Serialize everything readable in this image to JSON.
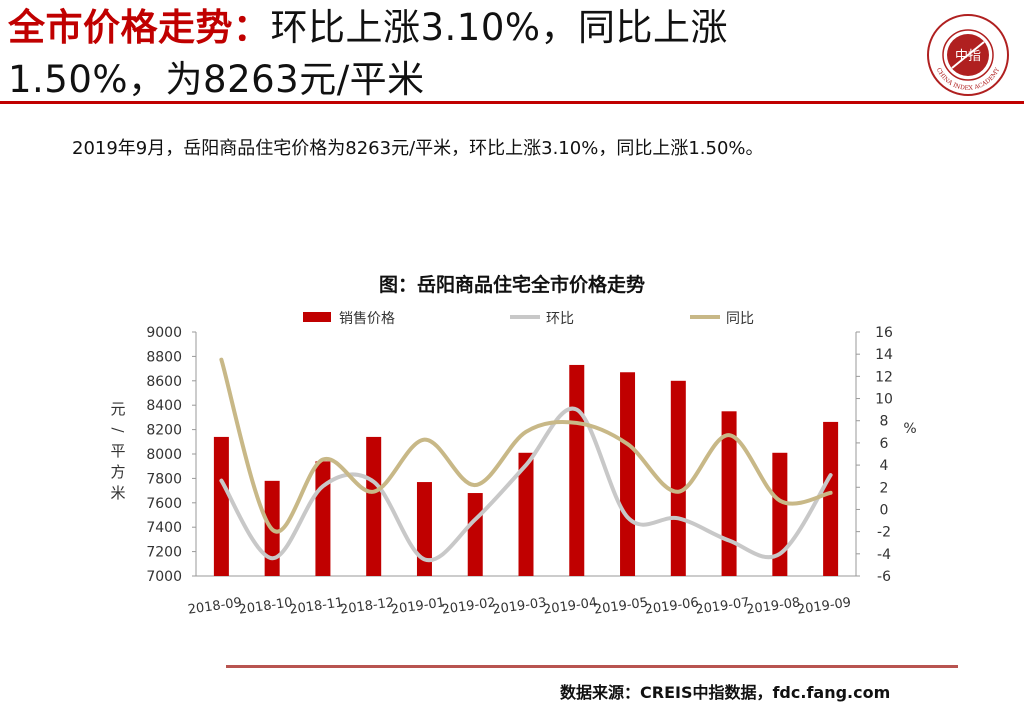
{
  "header": {
    "title_highlight": "全市价格走势：",
    "title_rest": "环比上涨3.10%，同比上涨1.50%，为8263元/平米"
  },
  "logo": {
    "center_text": "中指",
    "arc_text": "CHINA INDEX ACADEMY"
  },
  "summary": "2019年9月，岳阳商品住宅价格为8263元/平米，环比上涨3.10%，同比上涨1.50%。",
  "source": "数据来源：CREIS中指数据，fdc.fang.com",
  "colors": {
    "accent": "#c00000",
    "bar": "#c00000",
    "mom_line": "#c8c8c8",
    "yoy_line": "#c8b887",
    "source_rule": "#b85450"
  },
  "chart_data": {
    "type": "bar",
    "title": "图：岳阳商品住宅全市价格走势",
    "categories": [
      "2018-09",
      "2018-10",
      "2018-11",
      "2018-12",
      "2019-01",
      "2019-02",
      "2019-03",
      "2019-04",
      "2019-05",
      "2019-06",
      "2019-07",
      "2019-08",
      "2019-09"
    ],
    "series": [
      {
        "name": "销售价格",
        "type": "bar",
        "axis": "left",
        "values": [
          8140,
          7780,
          7940,
          8140,
          7770,
          7680,
          8010,
          8730,
          8670,
          8600,
          8350,
          8010,
          8263
        ]
      },
      {
        "name": "环比",
        "type": "line",
        "axis": "right",
        "values": [
          2.6,
          -4.4,
          2.1,
          2.5,
          -4.5,
          -0.9,
          4.0,
          9.0,
          -0.7,
          -0.8,
          -2.8,
          -4.0,
          3.1
        ]
      },
      {
        "name": "同比",
        "type": "line",
        "axis": "right",
        "values": [
          13.5,
          -1.8,
          4.5,
          1.6,
          6.3,
          2.2,
          7.0,
          7.8,
          5.9,
          1.6,
          6.7,
          0.8,
          1.5
        ]
      }
    ],
    "ylabel": "元/平方米",
    "y2label": "%",
    "ylim": [
      7000,
      9000
    ],
    "y2lim": [
      -6,
      16
    ],
    "yticks": [
      7000,
      7200,
      7400,
      7600,
      7800,
      8000,
      8200,
      8400,
      8600,
      8800,
      9000
    ],
    "y2ticks": [
      -6,
      -4,
      -2,
      0,
      2,
      4,
      6,
      8,
      10,
      12,
      14,
      16
    ],
    "legend_position": "top",
    "grid": false
  }
}
